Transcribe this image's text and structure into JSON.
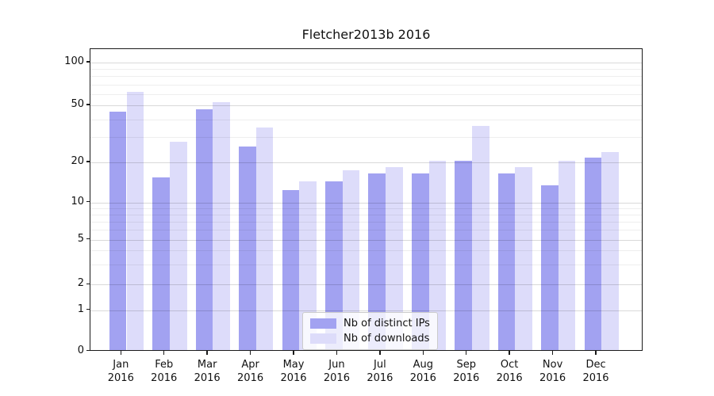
{
  "chart_data": {
    "type": "bar",
    "title": "Fletcher2013b 2016",
    "categories": [
      {
        "month": "Jan",
        "year": "2016"
      },
      {
        "month": "Feb",
        "year": "2016"
      },
      {
        "month": "Mar",
        "year": "2016"
      },
      {
        "month": "Apr",
        "year": "2016"
      },
      {
        "month": "May",
        "year": "2016"
      },
      {
        "month": "Jun",
        "year": "2016"
      },
      {
        "month": "Jul",
        "year": "2016"
      },
      {
        "month": "Aug",
        "year": "2016"
      },
      {
        "month": "Sep",
        "year": "2016"
      },
      {
        "month": "Oct",
        "year": "2016"
      },
      {
        "month": "Nov",
        "year": "2016"
      },
      {
        "month": "Dec",
        "year": "2016"
      }
    ],
    "series": [
      {
        "name": "Nb of distinct IPs",
        "color": "#a2a2f1",
        "values": [
          44,
          15,
          46,
          25,
          12,
          14,
          16,
          16,
          20,
          16,
          13,
          21
        ]
      },
      {
        "name": "Nb of downloads",
        "color": "#dddcfa",
        "values": [
          61,
          27,
          51,
          34,
          14,
          17,
          18,
          20,
          35,
          18,
          20,
          23
        ]
      }
    ],
    "y_axis": {
      "scale": "symlog",
      "ticks": [
        0,
        1,
        2,
        5,
        10,
        20,
        50,
        100
      ],
      "minor_ticks": [
        3,
        4,
        6,
        7,
        8,
        9,
        30,
        40,
        60,
        70,
        80,
        90
      ],
      "ylim": [
        0,
        120
      ]
    },
    "xlabel": "",
    "ylabel": "",
    "grid": true,
    "legend": {
      "position": "lower center",
      "labels": [
        "Nb of distinct IPs",
        "Nb of downloads"
      ]
    }
  },
  "colors": {
    "background": "#ffffff",
    "spine": "#1a1a1a",
    "grid_major": "#d9d9d9",
    "grid_minor": "#ededed",
    "text": "#111111",
    "legend_border": "#cbcbcb"
  }
}
